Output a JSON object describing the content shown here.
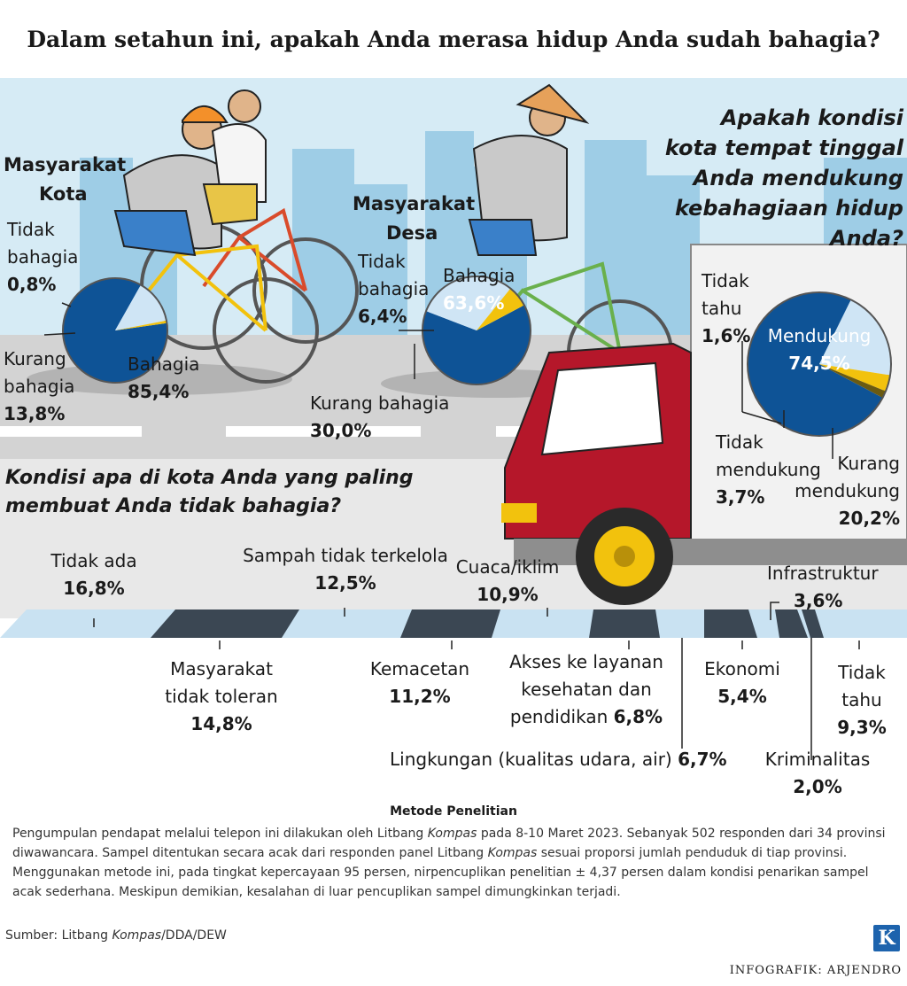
{
  "title": "Dalam setahun ini, apakah Anda merasa hidup Anda sudah bahagia?",
  "colors": {
    "dark_blue": "#0e5396",
    "light_blue": "#cfe5f5",
    "yellow": "#f2c20d",
    "olive": "#6a5a12",
    "sky": "#d7ebf5",
    "road": "#cfcfcf"
  },
  "chart_data": [
    {
      "type": "pie",
      "title": "Masyarakat Kota",
      "slices": [
        {
          "label": "Bahagia",
          "value": 85.4,
          "value_label": "85,4%"
        },
        {
          "label": "Kurang bahagia",
          "value": 13.8,
          "value_label": "13,8%"
        },
        {
          "label": "Tidak bahagia",
          "value": 0.8,
          "value_label": "0,8%"
        }
      ]
    },
    {
      "type": "pie",
      "title": "Masyarakat Desa",
      "slices": [
        {
          "label": "Bahagia",
          "value": 63.6,
          "value_label": "63,6%"
        },
        {
          "label": "Kurang bahagia",
          "value": 30.0,
          "value_label": "30,0%"
        },
        {
          "label": "Tidak bahagia",
          "value": 6.4,
          "value_label": "6,4%"
        }
      ]
    },
    {
      "type": "pie",
      "title": "Apakah kondisi kota tempat tinggal Anda mendukung kebahagiaan hidup Anda?",
      "slices": [
        {
          "label": "Mendukung",
          "value": 74.5,
          "value_label": "74,5%"
        },
        {
          "label": "Kurang mendukung",
          "value": 20.2,
          "value_label": "20,2%"
        },
        {
          "label": "Tidak mendukung",
          "value": 3.7,
          "value_label": "3,7%"
        },
        {
          "label": "Tidak tahu",
          "value": 1.6,
          "value_label": "1,6%"
        }
      ]
    },
    {
      "type": "bar",
      "title": "Kondisi apa di kota Anda yang paling membuat Anda tidak bahagia?",
      "categories": [
        "Tidak ada",
        "Masyarakat tidak toleran",
        "Sampah tidak terkelola",
        "Kemacetan",
        "Cuaca/iklim",
        "Akses ke layanan kesehatan dan pendidikan",
        "Lingkungan (kualitas udara, air)",
        "Ekonomi",
        "Infrastruktur",
        "Kriminalitas",
        "Tidak tahu"
      ],
      "values": [
        16.8,
        14.8,
        12.5,
        11.2,
        10.9,
        6.8,
        6.7,
        5.4,
        3.6,
        2.0,
        9.3
      ],
      "value_labels": [
        "16,8%",
        "14,8%",
        "12,5%",
        "11,2%",
        "10,9%",
        "6,8%",
        "6,7%",
        "5,4%",
        "3,6%",
        "2,0%",
        "9,3%"
      ]
    }
  ],
  "kota": {
    "heading_1": "Masyarakat",
    "heading_2": "Kota",
    "tidak_1": "Tidak",
    "tidak_2": "bahagia",
    "kurang_1": "Kurang",
    "kurang_2": "bahagia"
  },
  "desa": {
    "heading_1": "Masyarakat",
    "heading_2": "Desa",
    "tidak_1": "Tidak",
    "tidak_2": "bahagia"
  },
  "kondisi": {
    "q1": "Apakah kondisi",
    "q2": "kota tempat tinggal",
    "q3": "Anda mendukung",
    "q4": "kebahagiaan hidup",
    "q5": "Anda?",
    "tidak_tahu_1": "Tidak",
    "tidak_tahu_2": "tahu",
    "tidak_mendukung_1": "Tidak",
    "tidak_mendukung_2": "mendukung",
    "kurang_1": "Kurang",
    "kurang_2": "mendukung"
  },
  "bar_question_1": "Kondisi apa di kota Anda yang paling",
  "bar_question_2": "membuat Anda tidak bahagia?",
  "bar_labels": {
    "toleran_1": "Masyarakat",
    "toleran_2": "tidak toleran",
    "akses_1": "Akses ke layanan",
    "akses_2": "kesehatan dan",
    "akses_3": "pendidikan",
    "lingkungan": "Lingkungan (kualitas udara, air)",
    "tidak_tahu_1": "Tidak",
    "tidak_tahu_2": "tahu"
  },
  "method": {
    "title": "Metode Penelitian",
    "p1": "Pengumpulan pendapat melalui telepon ini dilakukan oleh Litbang ",
    "p1_em": "Kompas",
    "p2": " pada 8-10 Maret 2023. Sebanyak 502 responden dari 34 provinsi diwawancara. Sampel ditentukan secara acak dari responden panel Litbang ",
    "p2_em": "Kompas",
    "p3": " sesuai proporsi jumlah penduduk di tiap provinsi. Menggunakan metode ini, pada tingkat kepercayaan 95 persen, nirpencuplikan penelitian ± 4,37 persen dalam kondisi penarikan sampel acak sederhana. Meskipun demikian, kesalahan di luar pencuplikan sampel dimungkinkan terjadi."
  },
  "source": {
    "prefix": "Sumber: Litbang ",
    "em": "Kompas",
    "suffix": "/DDA/DEW"
  },
  "credit": "INFOGRAFIK: ARJENDRO",
  "logo": "K"
}
